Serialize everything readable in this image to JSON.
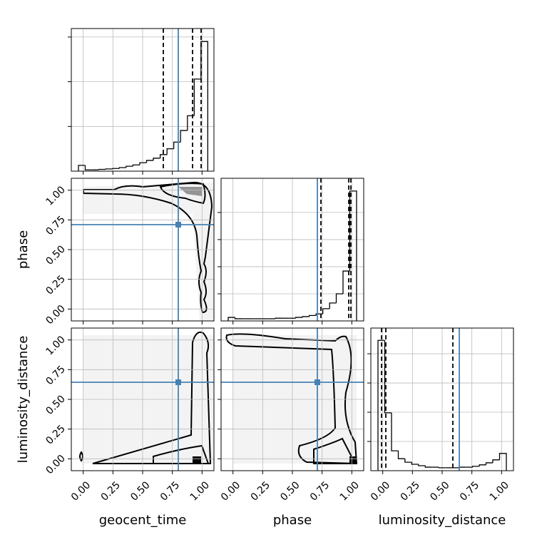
{
  "chart_data": {
    "type": "corner",
    "parameters": [
      "geocent_time",
      "phase",
      "luminosity_distance"
    ],
    "xlim": [
      -0.1,
      1.1
    ],
    "ylim": [
      -0.1,
      1.1
    ],
    "ticks": [
      {
        "value": 0,
        "label": "0.00"
      },
      {
        "value": 0.25,
        "label": "0.25"
      },
      {
        "value": 0.5,
        "label": "0.50"
      },
      {
        "value": 0.75,
        "label": "0.75"
      },
      {
        "value": 1,
        "label": "1.00"
      }
    ],
    "truths": [
      0.8,
      0.71,
      0.644
    ],
    "truth_color": "#4682b4",
    "quantiles": [
      [
        0.674,
        0.92,
        0.992
      ],
      [
        0.74,
        0.974,
        0.992
      ],
      [
        -0.01,
        0.026,
        0.59
      ]
    ],
    "grid": true,
    "histograms": [
      {
        "bins": [
          -0.04,
          0.017,
          0.075,
          0.132,
          0.189,
          0.247,
          0.304,
          0.361,
          0.418,
          0.476,
          0.533,
          0.59,
          0.648,
          0.705,
          0.762,
          0.819,
          0.877,
          0.934,
          0.991,
          1.048
        ],
        "counts": [
          0.13,
          0.03,
          0.03,
          0.04,
          0.05,
          0.06,
          0.08,
          0.11,
          0.14,
          0.19,
          0.24,
          0.29,
          0.37,
          0.5,
          0.65,
          0.91,
          1.24,
          2.06,
          2.9
        ],
        "ylim": [
          0,
          3.19
        ],
        "yticks": [
          1,
          2,
          3
        ]
      },
      {
        "bins": [
          -0.04,
          0.017,
          0.074,
          0.131,
          0.187,
          0.244,
          0.301,
          0.358,
          0.415,
          0.472,
          0.528,
          0.585,
          0.642,
          0.699,
          0.756,
          0.813,
          0.869,
          0.926,
          0.983,
          1.04
        ],
        "counts": [
          0.13,
          0.08,
          0.08,
          0.08,
          0.08,
          0.08,
          0.08,
          0.1,
          0.1,
          0.1,
          0.13,
          0.16,
          0.2,
          0.26,
          0.45,
          0.66,
          1.0,
          1.84,
          4.79
        ],
        "ylim": [
          0,
          5.26
        ],
        "yticks": [
          1,
          2,
          3,
          4
        ]
      },
      {
        "bins": [
          -0.04,
          0.017,
          0.074,
          0.131,
          0.187,
          0.244,
          0.301,
          0.358,
          0.415,
          0.472,
          0.528,
          0.585,
          0.642,
          0.699,
          0.756,
          0.813,
          0.869,
          0.926,
          0.983,
          1.04
        ],
        "counts": [
          4.46,
          1.98,
          0.68,
          0.41,
          0.29,
          0.22,
          0.17,
          0.12,
          0.12,
          0.1,
          0.1,
          0.1,
          0.12,
          0.12,
          0.15,
          0.2,
          0.27,
          0.37,
          0.59
        ],
        "ylim": [
          0,
          4.88
        ],
        "yticks": [
          1,
          2,
          3,
          4
        ]
      }
    ]
  }
}
